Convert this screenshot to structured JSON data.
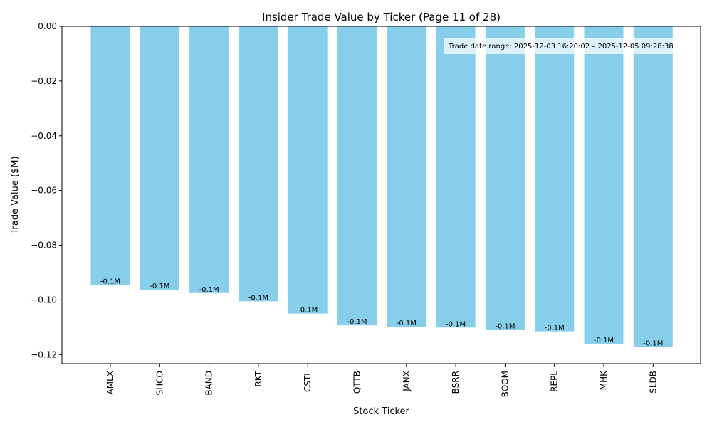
{
  "chart_data": {
    "type": "bar",
    "title": "Insider Trade Value by Ticker (Page 11 of 28)",
    "xlabel": "Stock Ticker",
    "ylabel": "Trade Value ($M)",
    "ylim": [
      -0.1233,
      0.0
    ],
    "yticks": [
      0.0,
      -0.02,
      -0.04,
      -0.06,
      -0.08,
      -0.1,
      -0.12
    ],
    "ytick_labels": [
      "0.00",
      "−0.02",
      "−0.04",
      "−0.06",
      "−0.08",
      "−0.10",
      "−0.12"
    ],
    "categories": [
      "AMLX",
      "SHCO",
      "BAND",
      "RKT",
      "CSTL",
      "QTTB",
      "JANX",
      "BSRR",
      "BOOM",
      "REPL",
      "MHK",
      "SLDB"
    ],
    "values": [
      -0.0945,
      -0.0963,
      -0.0975,
      -0.1005,
      -0.105,
      -0.1093,
      -0.1098,
      -0.1101,
      -0.111,
      -0.1115,
      -0.116,
      -0.1172
    ],
    "data_labels": [
      "-0.1M",
      "-0.1M",
      "-0.1M",
      "-0.1M",
      "-0.1M",
      "-0.1M",
      "-0.1M",
      "-0.1M",
      "-0.1M",
      "-0.1M",
      "-0.1M",
      "-0.1M"
    ],
    "bar_color": "#87ceeb",
    "annotation": "Trade date range: 2025-12-03 16:20:02 – 2025-12-05 09:28:38",
    "annotation_placement": "top-right",
    "grid": false
  }
}
